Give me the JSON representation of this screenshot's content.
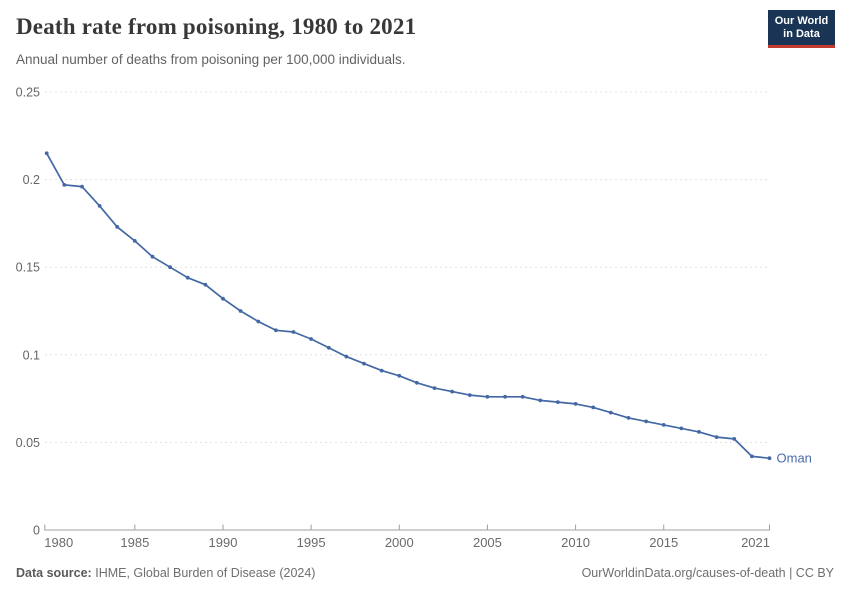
{
  "header": {
    "title": "Death rate from poisoning, 1980 to 2021",
    "subtitle": "Annual number of deaths from poisoning per 100,000 individuals.",
    "logo": {
      "line1": "Our World",
      "line2": "in Data"
    }
  },
  "footer": {
    "source_label": "Data source:",
    "source_text": "IHME, Global Burden of Disease (2024)",
    "credit": "OurWorldinData.org/causes-of-death | CC BY"
  },
  "colors": {
    "line": "#4468A4",
    "entity_label": "#4C6CA8",
    "grid": "#E0E0E0",
    "axis": "#A0A0A0",
    "tick_text": "#6B6B6B",
    "logo_bg": "#1A3456",
    "logo_red": "#C23B2E"
  },
  "chart_data": {
    "type": "line",
    "title": "Death rate from poisoning, 1980 to 2021",
    "subtitle": "Annual number of deaths from poisoning per 100,000 individuals.",
    "entity": "Oman",
    "xlabel": "",
    "ylabel": "",
    "xlim": [
      1980,
      2021
    ],
    "ylim": [
      0,
      0.25
    ],
    "grid": "horizontal-dashed",
    "legend_position": "end-of-line-label",
    "x": [
      1980,
      1981,
      1982,
      1983,
      1984,
      1985,
      1986,
      1987,
      1988,
      1989,
      1990,
      1991,
      1992,
      1993,
      1994,
      1995,
      1996,
      1997,
      1998,
      1999,
      2000,
      2001,
      2002,
      2003,
      2004,
      2005,
      2006,
      2007,
      2008,
      2009,
      2010,
      2011,
      2012,
      2013,
      2014,
      2015,
      2016,
      2017,
      2018,
      2019,
      2020,
      2021
    ],
    "series": [
      {
        "name": "Oman",
        "values": [
          0.215,
          0.197,
          0.196,
          0.185,
          0.173,
          0.165,
          0.156,
          0.15,
          0.144,
          0.14,
          0.132,
          0.125,
          0.119,
          0.114,
          0.113,
          0.109,
          0.104,
          0.099,
          0.095,
          0.091,
          0.088,
          0.084,
          0.081,
          0.079,
          0.077,
          0.076,
          0.076,
          0.076,
          0.074,
          0.073,
          0.072,
          0.07,
          0.067,
          0.064,
          0.062,
          0.06,
          0.058,
          0.056,
          0.053,
          0.052,
          0.042,
          0.041
        ]
      }
    ],
    "y_ticks": [
      {
        "v": 0,
        "label": "0"
      },
      {
        "v": 0.05,
        "label": "0.05"
      },
      {
        "v": 0.1,
        "label": "0.1"
      },
      {
        "v": 0.15,
        "label": "0.15"
      },
      {
        "v": 0.2,
        "label": "0.2"
      },
      {
        "v": 0.25,
        "label": "0.25"
      }
    ],
    "x_ticks": [
      {
        "v": 1980,
        "label": "1980"
      },
      {
        "v": 1985,
        "label": "1985"
      },
      {
        "v": 1990,
        "label": "1990"
      },
      {
        "v": 1995,
        "label": "1995"
      },
      {
        "v": 2000,
        "label": "2000"
      },
      {
        "v": 2005,
        "label": "2005"
      },
      {
        "v": 2010,
        "label": "2010"
      },
      {
        "v": 2015,
        "label": "2015"
      },
      {
        "v": 2021,
        "label": "2021"
      }
    ]
  }
}
